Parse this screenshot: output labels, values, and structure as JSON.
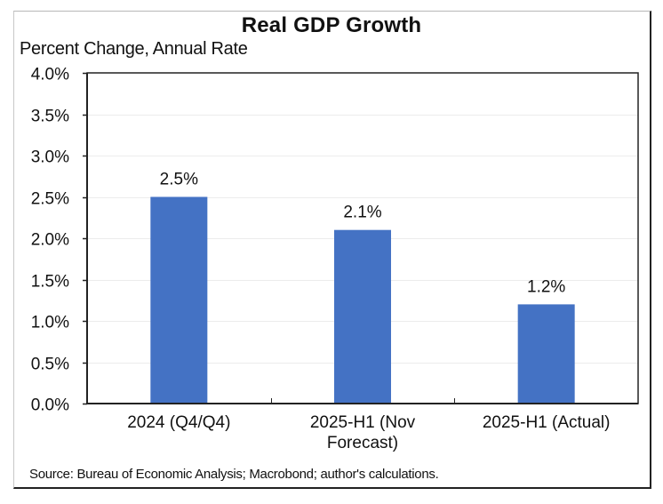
{
  "chart_data": {
    "type": "bar",
    "title": "Real GDP Growth",
    "ylabel": "Percent Change, Annual Rate",
    "xlabel": "",
    "categories": [
      [
        "2024 (Q4/Q4)"
      ],
      [
        "2025-H1 (Nov",
        "Forecast)"
      ],
      [
        "2025-H1 (Actual)"
      ]
    ],
    "values": [
      2.5,
      2.1,
      1.2
    ],
    "data_labels": [
      "2.5%",
      "2.1%",
      "1.2%"
    ],
    "ylim": [
      0,
      4.0
    ],
    "yticks": [
      0,
      0.5,
      1.0,
      1.5,
      2.0,
      2.5,
      3.0,
      3.5,
      4.0
    ],
    "ytick_labels": [
      "0.0%",
      "0.5%",
      "1.0%",
      "1.5%",
      "2.0%",
      "2.5%",
      "3.0%",
      "3.5%",
      "4.0%"
    ],
    "grid": true,
    "legend": "none",
    "bar_color": "#4472C4",
    "source": "Source: Bureau of Economic Analysis; Macrobond; author's calculations."
  }
}
